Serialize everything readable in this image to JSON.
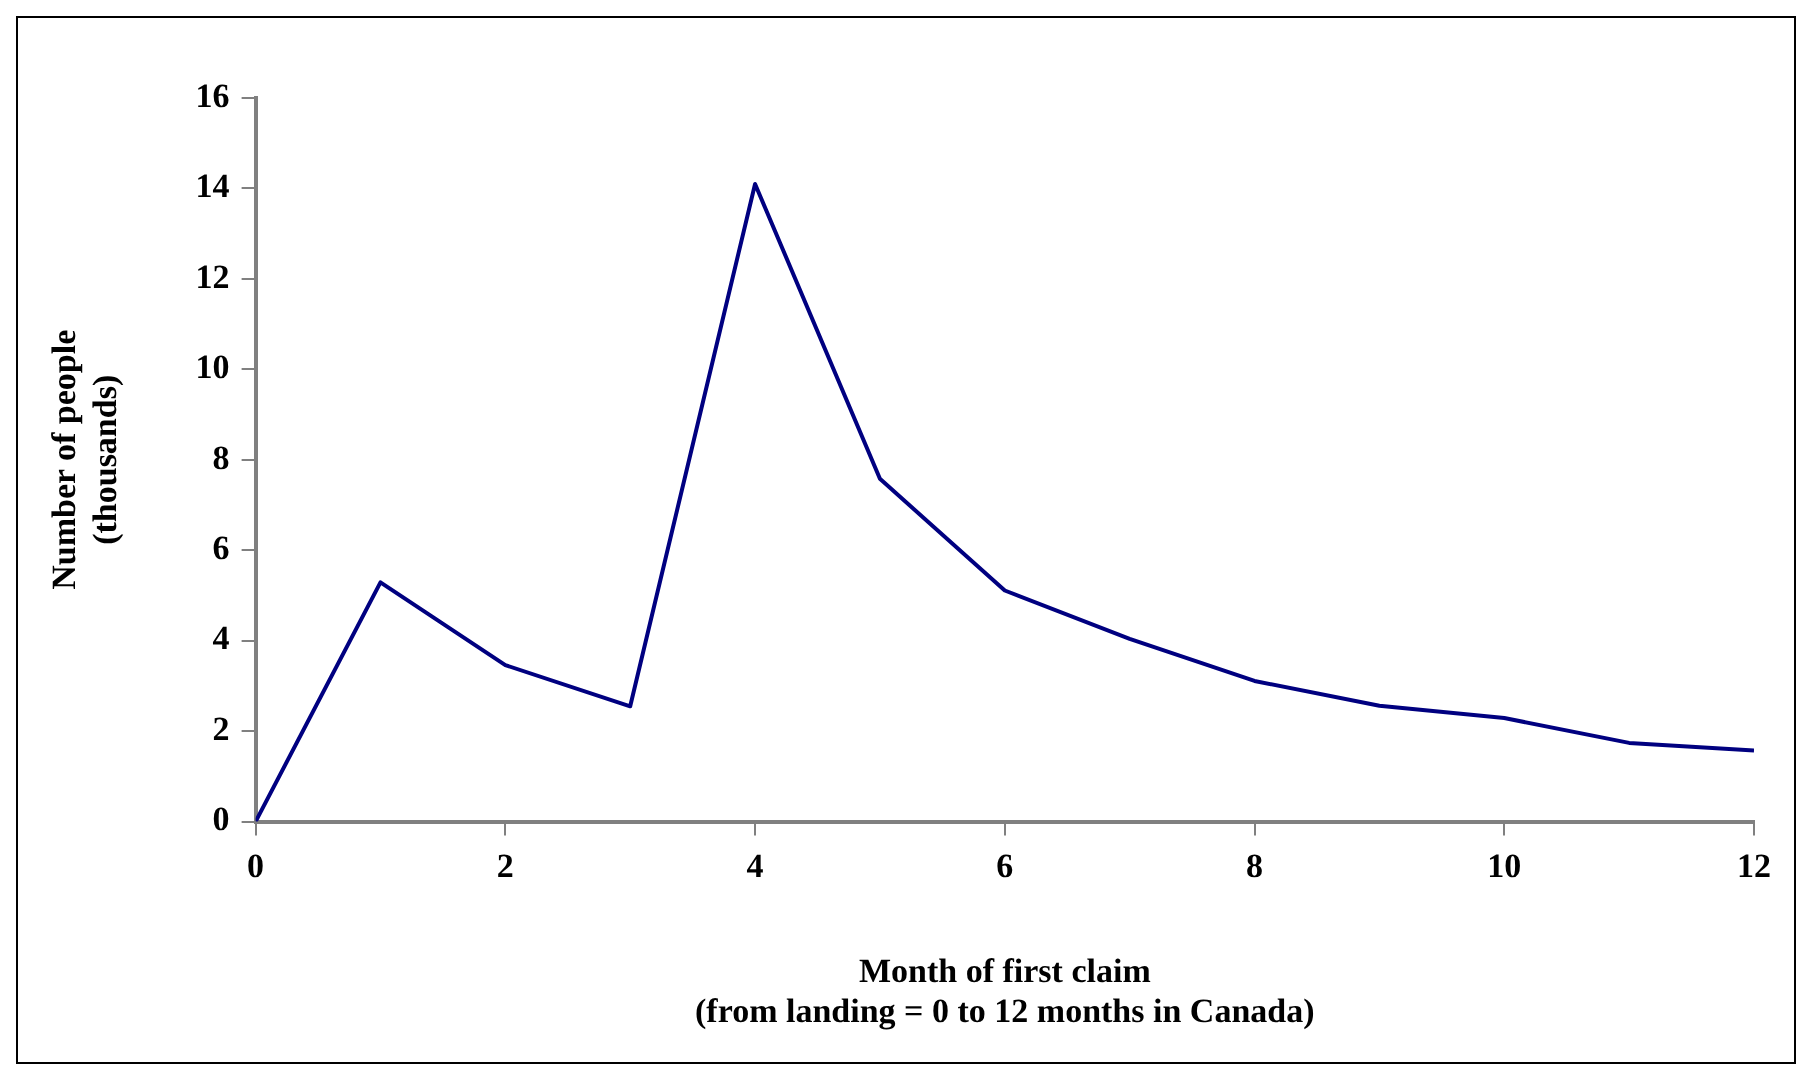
{
  "chart_data": {
    "type": "line",
    "xlabel": "Month of first claim\n(from landing = 0 to 12 months in Canada)",
    "ylabel": "Number of people\n(thousands)",
    "x": [
      0,
      1,
      2,
      3,
      4,
      5,
      6,
      7,
      8,
      9,
      10,
      11,
      12
    ],
    "series": [
      {
        "color": "#000080",
        "values": [
          0,
          5.29,
          3.46,
          2.55,
          14.1,
          7.58,
          5.11,
          4.04,
          3.11,
          2.56,
          2.29,
          1.74,
          1.57
        ]
      }
    ],
    "xlim": [
      0,
      12
    ],
    "xticks": [
      0,
      2,
      4,
      6,
      8,
      10,
      12
    ],
    "ylim": [
      0,
      16
    ],
    "yticks": [
      0,
      2,
      4,
      6,
      8,
      10,
      12,
      14,
      16
    ],
    "grid": false,
    "legend": false,
    "marker": "none",
    "line_style": "solid"
  }
}
